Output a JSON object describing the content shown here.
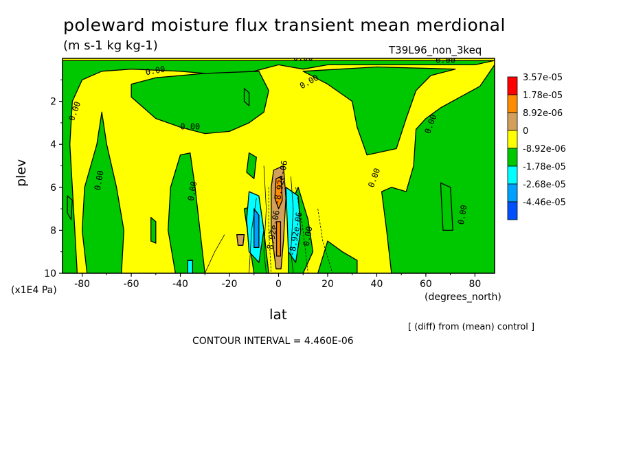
{
  "chart_data": {
    "type": "heatmap",
    "title": "poleward moisture flux transient mean merdional",
    "subtitle": "(m s-1 kg kg-1)",
    "run_label": "T39L96_non_3keq",
    "xlabel": "lat",
    "xunits": "(degrees_north)",
    "ylabel": "plev",
    "yunits": "(x1E4 Pa)",
    "xlim": [
      -88,
      88
    ],
    "ylim": [
      0,
      10
    ],
    "x_ticks": [
      -80,
      -60,
      -40,
      -20,
      0,
      20,
      40,
      60,
      80
    ],
    "x_tick_labels": [
      "-80",
      "-60",
      "-40",
      "-20",
      "0",
      "20",
      "40",
      "60",
      "80"
    ],
    "y_ticks": [
      2,
      4,
      6,
      8,
      10
    ],
    "y_tick_labels": [
      "2",
      "4",
      "6",
      "8",
      "10"
    ],
    "y_inverted": true,
    "legend": {
      "placement": "right",
      "levels": [
        "3.57e-05",
        "1.78e-05",
        "8.92e-06",
        "0",
        "-8.92e-06",
        "-1.78e-05",
        "-2.68e-05",
        "-4.46e-05"
      ],
      "colors": [
        "#ff0000",
        "#ff8c00",
        "#d2a05a",
        "#ffff00",
        "#00c800",
        "#00ffff",
        "#00a0ff",
        "#0050ff"
      ]
    },
    "colors": {
      "positive_low": "#ffff00",
      "negative_low": "#00c800",
      "positive_mid": "#d2a05a",
      "positive_high": "#ff8c00",
      "negative_mid": "#00ffff",
      "negative_high": "#00a0ff"
    },
    "regions": [
      {
        "sign": "neg",
        "polygon": [
          [
            -88,
            0.1
          ],
          [
            -88,
            10
          ],
          [
            -82,
            10
          ],
          [
            -83,
            8
          ],
          [
            -84,
            6
          ],
          [
            -85,
            4
          ],
          [
            -84,
            2
          ],
          [
            -80,
            1
          ],
          [
            -72,
            0.6
          ],
          [
            -60,
            0.5
          ],
          [
            -40,
            0.6
          ],
          [
            -20,
            0.8
          ],
          [
            -10,
            0.6
          ],
          [
            0,
            0.3
          ],
          [
            10,
            0.5
          ],
          [
            20,
            0.3
          ],
          [
            40,
            0.3
          ],
          [
            60,
            0.3
          ],
          [
            80,
            0.3
          ],
          [
            88,
            0.1
          ]
        ]
      },
      {
        "sign": "neg",
        "polygon": [
          [
            -78,
            10
          ],
          [
            -80,
            8
          ],
          [
            -79,
            6
          ],
          [
            -74,
            4
          ],
          [
            -72,
            2.5
          ],
          [
            -70,
            4
          ],
          [
            -66,
            6
          ],
          [
            -63,
            8
          ],
          [
            -64,
            10
          ]
        ]
      },
      {
        "sign": "neg",
        "polygon": [
          [
            -60,
            1.8
          ],
          [
            -50,
            2.8
          ],
          [
            -40,
            3.2
          ],
          [
            -30,
            3.5
          ],
          [
            -20,
            3.4
          ],
          [
            -12,
            3
          ],
          [
            -6,
            2.5
          ],
          [
            -4,
            1.5
          ],
          [
            -8,
            0.6
          ],
          [
            -30,
            0.7
          ],
          [
            -50,
            0.9
          ],
          [
            -60,
            1.2
          ]
        ]
      },
      {
        "sign": "neg",
        "polygon": [
          [
            -36,
            4.4
          ],
          [
            -34,
            6
          ],
          [
            -32,
            8
          ],
          [
            -30,
            10
          ],
          [
            -42,
            10
          ],
          [
            -45,
            8
          ],
          [
            -44,
            6
          ],
          [
            -40,
            4.5
          ]
        ]
      },
      {
        "sign": "neg",
        "polygon": [
          [
            10,
            0.6
          ],
          [
            20,
            1.2
          ],
          [
            30,
            2
          ],
          [
            32,
            3.2
          ],
          [
            36,
            4.5
          ],
          [
            48,
            4.2
          ],
          [
            52,
            2.8
          ],
          [
            56,
            1.5
          ],
          [
            62,
            0.8
          ],
          [
            72,
            0.5
          ],
          [
            40,
            0.4
          ]
        ]
      },
      {
        "sign": "neg",
        "polygon": [
          [
            42,
            6.2
          ],
          [
            44,
            8
          ],
          [
            46,
            10
          ],
          [
            88,
            10
          ],
          [
            88,
            0.3
          ],
          [
            82,
            1.3
          ],
          [
            74,
            1.8
          ],
          [
            66,
            2.3
          ],
          [
            60,
            2.8
          ],
          [
            56,
            3.3
          ],
          [
            55,
            5
          ],
          [
            52,
            6.2
          ],
          [
            46,
            6
          ]
        ]
      },
      {
        "sign": "neg",
        "polygon": [
          [
            8,
            6
          ],
          [
            12,
            7.5
          ],
          [
            14,
            9
          ],
          [
            10,
            10
          ],
          [
            4,
            10
          ],
          [
            4,
            7
          ]
        ]
      },
      {
        "sign": "neg",
        "polygon": [
          [
            -14,
            7
          ],
          [
            -12,
            8.5
          ],
          [
            -10,
            10
          ],
          [
            -4,
            10
          ],
          [
            -6,
            8
          ],
          [
            -8,
            6.8
          ]
        ]
      },
      {
        "sign": "neg",
        "polygon": [
          [
            20,
            8.5
          ],
          [
            26,
            9
          ],
          [
            32,
            9.4
          ],
          [
            32,
            10
          ],
          [
            16,
            10
          ]
        ]
      },
      {
        "sign": "negmid",
        "polygon": [
          [
            -12,
            6.2
          ],
          [
            -8,
            6.4
          ],
          [
            -6,
            8
          ],
          [
            -8,
            9.5
          ],
          [
            -12,
            9
          ],
          [
            -13,
            7.5
          ]
        ]
      },
      {
        "sign": "negmid",
        "polygon": [
          [
            3,
            6
          ],
          [
            8,
            6.4
          ],
          [
            9,
            8
          ],
          [
            7,
            9.5
          ],
          [
            4,
            9
          ]
        ]
      },
      {
        "sign": "neghigh",
        "polygon": [
          [
            -10,
            7
          ],
          [
            -8,
            7.3
          ],
          [
            -8,
            8.8
          ],
          [
            -10,
            8.8
          ]
        ]
      },
      {
        "sign": "negmid",
        "polygon": [
          [
            -37,
            9.4
          ],
          [
            -35,
            9.4
          ],
          [
            -35,
            10
          ],
          [
            -37,
            10
          ]
        ]
      },
      {
        "sign": "posmid",
        "polygon": [
          [
            -2,
            5.2
          ],
          [
            2,
            5
          ],
          [
            3,
            6.5
          ],
          [
            2,
            8.5
          ],
          [
            1,
            9.8
          ],
          [
            -1,
            9.8
          ],
          [
            -3,
            8
          ],
          [
            -3,
            6
          ]
        ]
      },
      {
        "sign": "poshigh",
        "polygon": [
          [
            -1,
            5.6
          ],
          [
            1,
            5.5
          ],
          [
            1.5,
            6.6
          ],
          [
            0,
            7
          ],
          [
            -1.5,
            6.5
          ]
        ]
      },
      {
        "sign": "poshigh",
        "polygon": [
          [
            -0.8,
            7.6
          ],
          [
            0.8,
            7.6
          ],
          [
            0.8,
            9.2
          ],
          [
            -0.8,
            9.2
          ]
        ]
      },
      {
        "sign": "posmid",
        "polygon": [
          [
            -17,
            8.2
          ],
          [
            -14,
            8.2
          ],
          [
            -14.5,
            8.7
          ],
          [
            -16.5,
            8.7
          ]
        ]
      },
      {
        "sign": "neg",
        "polygon": [
          [
            -12,
            4.4
          ],
          [
            -9,
            4.6
          ],
          [
            -10,
            5.6
          ],
          [
            -13,
            5.3
          ]
        ]
      },
      {
        "sign": "neg",
        "polygon": [
          [
            -86,
            6.4
          ],
          [
            -84,
            6.6
          ],
          [
            -84.5,
            7.5
          ],
          [
            -86,
            7.2
          ]
        ]
      },
      {
        "sign": "neg",
        "polygon": [
          [
            -52,
            7.4
          ],
          [
            -50,
            7.6
          ],
          [
            -50,
            8.6
          ],
          [
            -52,
            8.5
          ]
        ]
      },
      {
        "sign": "neg",
        "polygon": [
          [
            -14,
            1.4
          ],
          [
            -12,
            1.6
          ],
          [
            -12,
            2.2
          ],
          [
            -14,
            2
          ]
        ]
      },
      {
        "sign": "neg",
        "polygon": [
          [
            66,
            5.8
          ],
          [
            70,
            6
          ],
          [
            71,
            8
          ],
          [
            67,
            8
          ]
        ]
      }
    ],
    "contour_labels": [
      {
        "text": "0.00",
        "x": -50,
        "y": 0.7,
        "angle": -10
      },
      {
        "text": "0.00",
        "x": 10,
        "y": 0.1,
        "angle": 0
      },
      {
        "text": "0.00",
        "x": 68,
        "y": 0.2,
        "angle": 0
      },
      {
        "text": "0.00",
        "x": 13,
        "y": 1.2,
        "angle": -30
      },
      {
        "text": "0.00",
        "x": -82,
        "y": 2.5,
        "angle": -70
      },
      {
        "text": "0.00",
        "x": -36,
        "y": 3.3,
        "angle": 0
      },
      {
        "text": "0.00",
        "x": -72,
        "y": 5.7,
        "angle": -80
      },
      {
        "text": "0.00",
        "x": -34,
        "y": 6.2,
        "angle": -80
      },
      {
        "text": "0.00",
        "x": 40,
        "y": 5.6,
        "angle": -70
      },
      {
        "text": "0.00",
        "x": 63,
        "y": 3.1,
        "angle": -70
      },
      {
        "text": "0.00",
        "x": 76,
        "y": 7.3,
        "angle": -80
      },
      {
        "text": "0.00",
        "x": 13,
        "y": 8.3,
        "angle": -80
      },
      {
        "text": "-8.92e-06",
        "x": 2,
        "y": 5.8,
        "angle": -80
      },
      {
        "text": "-8.92e-06",
        "x": 8,
        "y": 8.2,
        "angle": -80
      },
      {
        "text": "8.92e-06",
        "x": -1,
        "y": 8,
        "angle": -80
      }
    ],
    "contour_interval_label": "CONTOUR INTERVAL = 4.460E-06",
    "diff_label": "[ (diff) from (mean) control ]"
  }
}
